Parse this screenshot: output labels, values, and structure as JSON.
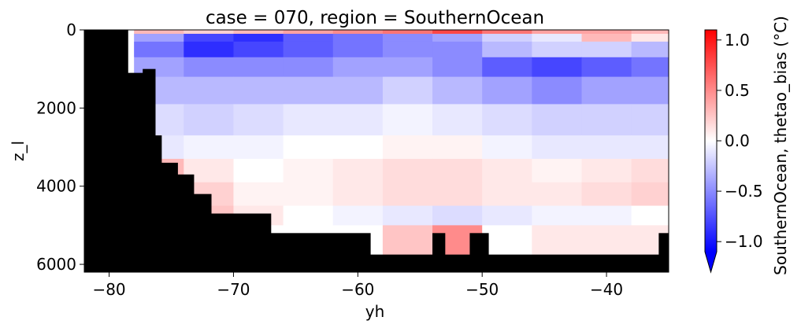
{
  "chart_data": {
    "type": "heatmap",
    "title": "case = 070, region = SouthernOcean",
    "xlabel": "yh",
    "ylabel": "z_l",
    "xlim": [
      -82,
      -35
    ],
    "ylim": [
      6200,
      0
    ],
    "y_inverted": true,
    "x_ticks": [
      -80,
      -70,
      -60,
      -50,
      -40
    ],
    "x_tick_labels": [
      "−80",
      "−70",
      "−60",
      "−50",
      "−40"
    ],
    "y_ticks": [
      0,
      2000,
      4000,
      6000
    ],
    "y_tick_labels": [
      "0",
      "2000",
      "4000",
      "6000"
    ],
    "colorbar": {
      "label": "SouthernOcean, thetao_bias ($^o$C)",
      "label_display": "SouthernOcean, thetao_bias (°C)",
      "vmin": -1.1,
      "vmax": 1.1,
      "ticks": [
        -1.0,
        -0.5,
        0.0,
        0.5,
        1.0
      ],
      "tick_labels": [
        "−1.0",
        "−0.5",
        "0.0",
        "0.5",
        "1.0"
      ],
      "extend": "min",
      "colormap": "bwr",
      "colors": {
        "low": "#0000ff",
        "mid": "#ffffff",
        "high": "#ff0000"
      }
    },
    "land_color": "#000000",
    "bathymetry_depth_by_lat": [
      {
        "x": [
          -82.0,
          -78.5
        ],
        "depth": 0
      },
      {
        "x": [
          -78.5,
          -77.3
        ],
        "depth": 1100
      },
      {
        "x": [
          -77.3,
          -76.3
        ],
        "depth": 1000
      },
      {
        "x": [
          -76.3,
          -75.8
        ],
        "depth": 2700
      },
      {
        "x": [
          -75.8,
          -74.5
        ],
        "depth": 3400
      },
      {
        "x": [
          -74.5,
          -73.2
        ],
        "depth": 3700
      },
      {
        "x": [
          -73.2,
          -71.8
        ],
        "depth": 4200
      },
      {
        "x": [
          -71.8,
          -67.0
        ],
        "depth": 4700
      },
      {
        "x": [
          -67.0,
          -59.0
        ],
        "depth": 5200
      },
      {
        "x": [
          -59.0,
          -54.0
        ],
        "depth": 5750
      },
      {
        "x": [
          -54.0,
          -53.0
        ],
        "depth": 5200
      },
      {
        "x": [
          -53.0,
          -51.0
        ],
        "depth": 5750
      },
      {
        "x": [
          -51.0,
          -49.5
        ],
        "depth": 5200
      },
      {
        "x": [
          -49.5,
          -35.8
        ],
        "depth": 5750
      },
      {
        "x": [
          -35.8,
          -35.0
        ],
        "depth": 5200
      }
    ],
    "bias_grid": {
      "x_edges": [
        -82,
        -78,
        -74,
        -70,
        -66,
        -62,
        -58,
        -54,
        -50,
        -46,
        -42,
        -38,
        -35
      ],
      "z_edges": [
        0,
        100,
        300,
        700,
        1200,
        1900,
        2700,
        3300,
        3900,
        4500,
        5000,
        5750
      ],
      "values": [
        [
          0.0,
          0.3,
          0.2,
          0.3,
          0.4,
          0.5,
          0.6,
          0.8,
          0.6,
          0.4,
          0.4,
          0.3
        ],
        [
          0.0,
          -0.4,
          -0.8,
          -0.9,
          -0.7,
          -0.6,
          -0.5,
          -0.4,
          -0.2,
          -0.1,
          0.3,
          0.1
        ],
        [
          0.0,
          -0.6,
          -0.9,
          -0.8,
          -0.7,
          -0.6,
          -0.5,
          -0.5,
          -0.3,
          -0.2,
          -0.2,
          -0.3
        ],
        [
          0.0,
          -0.4,
          -0.5,
          -0.5,
          -0.5,
          -0.4,
          -0.4,
          -0.5,
          -0.7,
          -0.8,
          -0.7,
          -0.6
        ],
        [
          0.0,
          -0.3,
          -0.3,
          -0.3,
          -0.3,
          -0.3,
          -0.2,
          -0.3,
          -0.4,
          -0.5,
          -0.4,
          -0.4
        ],
        [
          0.0,
          -0.15,
          -0.2,
          -0.15,
          -0.1,
          -0.1,
          -0.05,
          -0.1,
          -0.15,
          -0.2,
          -0.2,
          -0.2
        ],
        [
          0.0,
          -0.1,
          -0.05,
          -0.05,
          0.0,
          0.0,
          0.05,
          0.05,
          -0.05,
          -0.1,
          -0.1,
          -0.1
        ],
        [
          0.0,
          0.3,
          0.1,
          0.0,
          0.05,
          0.1,
          0.15,
          0.15,
          0.1,
          0.05,
          0.1,
          0.15
        ],
        [
          0.0,
          0.3,
          0.2,
          0.05,
          0.05,
          0.1,
          0.15,
          0.15,
          0.1,
          0.1,
          0.15,
          0.2
        ],
        [
          0.0,
          0.0,
          0.25,
          0.1,
          0.0,
          -0.05,
          -0.1,
          -0.15,
          -0.1,
          -0.05,
          -0.05,
          0.0
        ],
        [
          0.0,
          0.0,
          0.0,
          0.0,
          0.0,
          0.0,
          0.25,
          0.5,
          0.0,
          0.1,
          0.1,
          0.1
        ]
      ]
    }
  }
}
